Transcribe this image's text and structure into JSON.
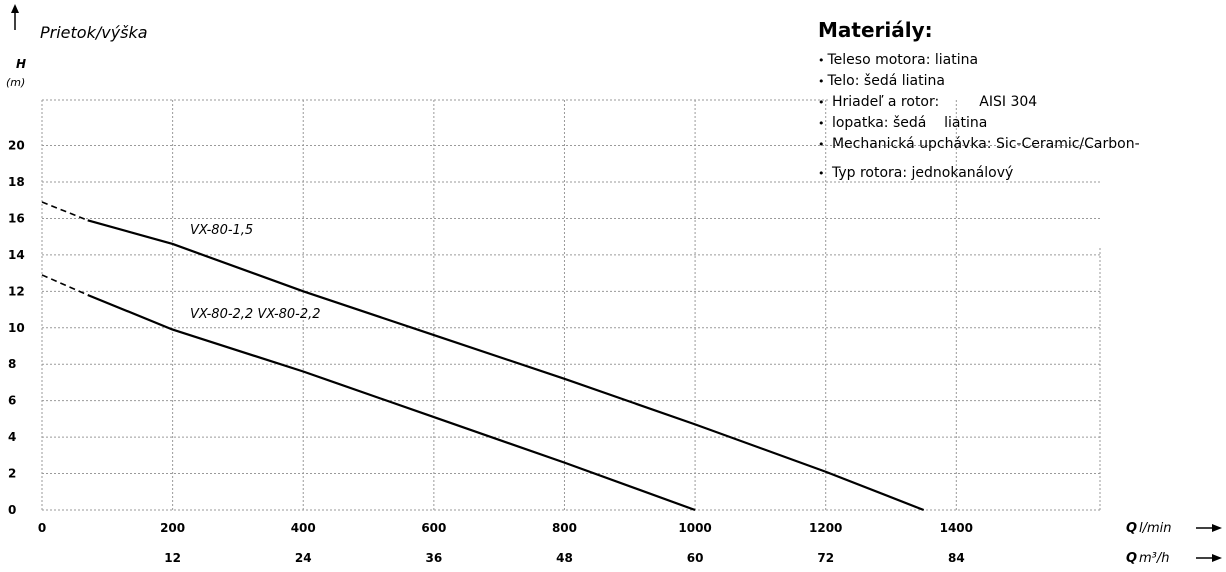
{
  "chart_data": {
    "type": "line",
    "title": "Prietok/výška",
    "ylabel": "H",
    "yunit": "(m)",
    "xaxes": [
      {
        "label": "Q",
        "unit": "l/min",
        "ticks": [
          "0",
          "200",
          "400",
          "600",
          "800",
          "1000",
          "1200",
          "1400"
        ]
      },
      {
        "label": "Q",
        "unit": "m³/h",
        "ticks": [
          "12",
          "24",
          "36",
          "48",
          "60",
          "72",
          "84"
        ]
      }
    ],
    "yticks": [
      "0",
      "2",
      "4",
      "6",
      "8",
      "10",
      "12",
      "14",
      "16",
      "18",
      "20"
    ],
    "xlim": [
      0,
      1620
    ],
    "ylim": [
      0,
      22.5
    ],
    "grid": true,
    "series": [
      {
        "name": "VX-80-1,5",
        "extrapolated": [
          {
            "x": 0,
            "y": 16.9
          },
          {
            "x": 70,
            "y": 15.9
          }
        ],
        "points": [
          {
            "x": 70,
            "y": 15.9
          },
          {
            "x": 200,
            "y": 14.6
          },
          {
            "x": 400,
            "y": 12.0
          },
          {
            "x": 600,
            "y": 9.6
          },
          {
            "x": 800,
            "y": 7.2
          },
          {
            "x": 1000,
            "y": 4.7
          },
          {
            "x": 1200,
            "y": 2.1
          },
          {
            "x": 1350,
            "y": 0
          }
        ]
      },
      {
        "name": "VX-80-2,2 VX-80-2,2",
        "extrapolated": [
          {
            "x": 0,
            "y": 12.9
          },
          {
            "x": 70,
            "y": 11.8
          }
        ],
        "points": [
          {
            "x": 70,
            "y": 11.8
          },
          {
            "x": 200,
            "y": 9.9
          },
          {
            "x": 400,
            "y": 7.6
          },
          {
            "x": 600,
            "y": 5.1
          },
          {
            "x": 800,
            "y": 2.6
          },
          {
            "x": 1000,
            "y": 0
          }
        ]
      }
    ]
  },
  "materials": {
    "title": "Materiály:",
    "items": [
      "Teleso motora: liatina",
      "Telo: šedá liatina",
      " Hriadeľ a rotor:         AISI 304",
      " lopatka: šedá    liatina",
      " Mechanická upchávka: Sic-Ceramic/Carbon-",
      " Typ rotora: jednokanálový"
    ]
  },
  "colors": {
    "curve": "#000000",
    "grid": "#9a9a9a"
  }
}
